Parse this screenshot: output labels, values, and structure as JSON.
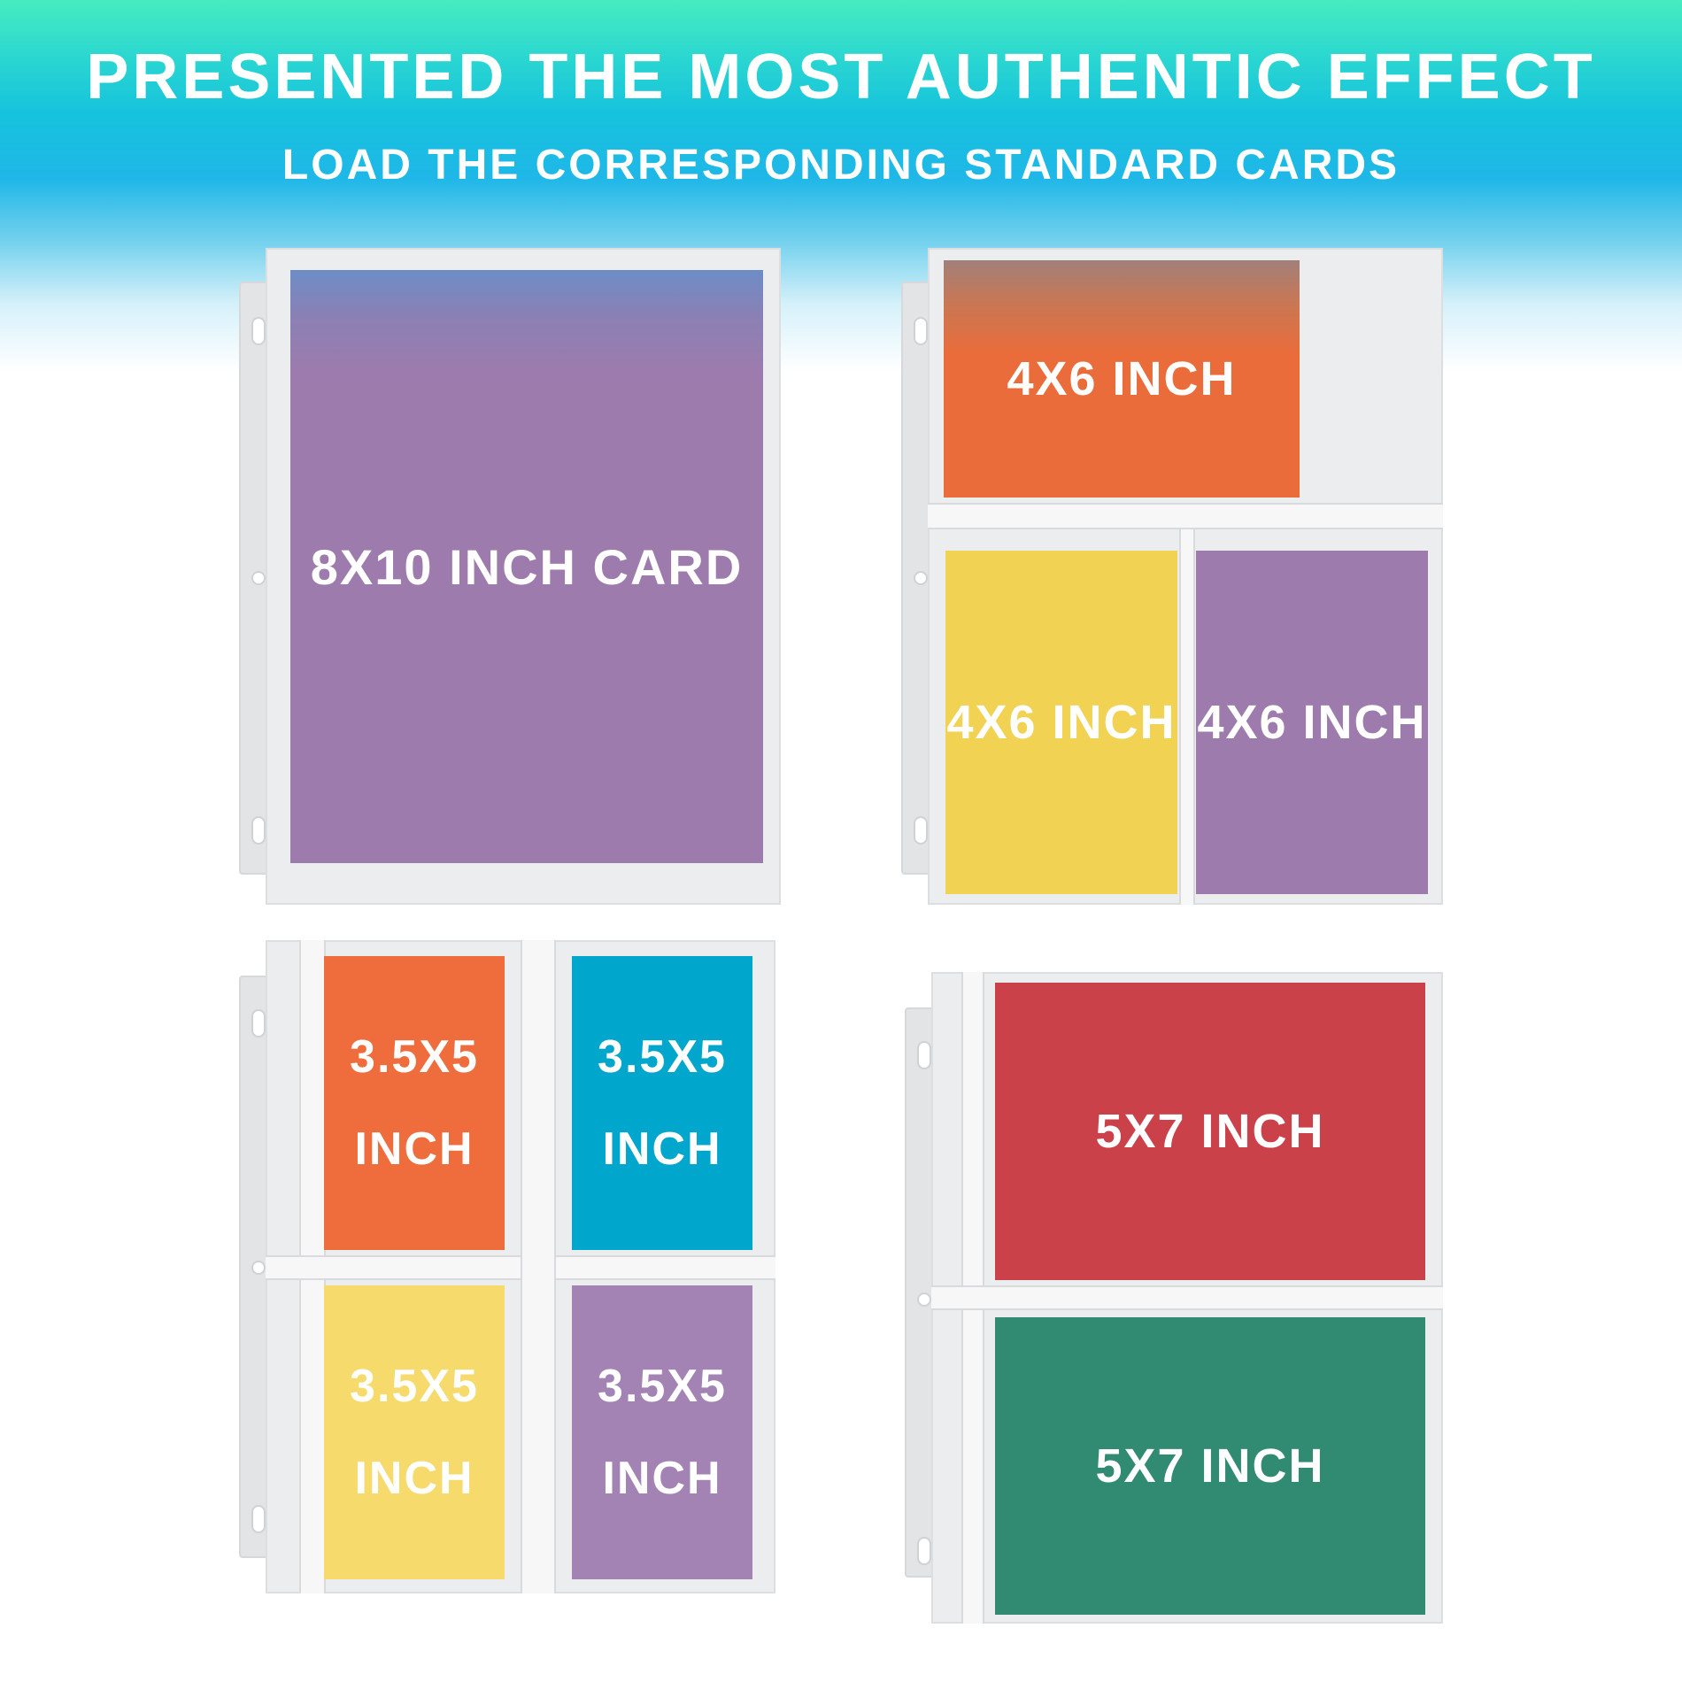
{
  "header": {
    "title": "PRESENTED THE MOST AUTHENTIC EFFECT",
    "subtitle": "LOAD THE CORRESPONDING STANDARD CARDS"
  },
  "sleeves": {
    "one_pocket": {
      "card_label": "8X10 INCH CARD",
      "card_color": "#9e7bad"
    },
    "three_pocket": {
      "top_label": "4X6 INCH",
      "top_color": "#ea6c3a",
      "left_label": "4X6 INCH",
      "left_color": "#f1d252",
      "right_label": "4X6 INCH",
      "right_color": "#9e7bad"
    },
    "four_pocket": {
      "tl_line1": "3.5X5",
      "tl_line2": "INCH",
      "tl_color": "#ef6d3c",
      "tr_line1": "3.5X5",
      "tr_line2": "INCH",
      "tr_color": "#01a6cc",
      "bl_line1": "3.5X5",
      "bl_line2": "INCH",
      "bl_color": "#f6da6c",
      "br_line1": "3.5X5",
      "br_line2": "INCH",
      "br_color": "#a383b4"
    },
    "two_pocket": {
      "top_label": "5X7 INCH",
      "top_color": "#cb414a",
      "bottom_label": "5X7 INCH",
      "bottom_color": "#318a72"
    }
  },
  "colors": {
    "banner_top": "#47ecc0",
    "banner_mid": "#16c3dc",
    "sleeve": "#ecedee"
  }
}
